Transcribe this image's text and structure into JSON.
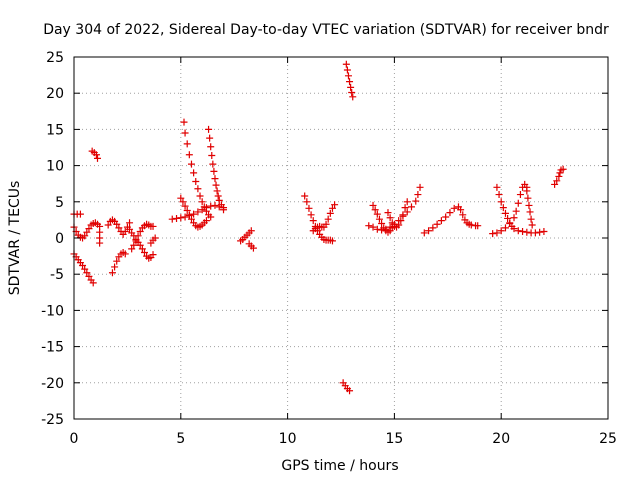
{
  "chart_data": {
    "type": "scatter",
    "title": "Day 304 of 2022, Sidereal Day-to-day VTEC variation (SDTVAR) for receiver bndr",
    "xlabel": "GPS time / hours",
    "ylabel": "SDTVAR / TECUs",
    "xlim": [
      0,
      25
    ],
    "ylim": [
      -25,
      25
    ],
    "xticks": [
      "0",
      "5",
      "10",
      "15",
      "20",
      "25"
    ],
    "yticks": [
      "25",
      "20",
      "15",
      "10",
      "5",
      "0",
      "-5",
      "-10",
      "-15",
      "-20",
      "-25"
    ],
    "grid": true,
    "marker": "plus",
    "color": "#e00000",
    "segments": [
      {
        "points": [
          [
            0.0,
            3.3
          ],
          [
            0.15,
            3.3
          ],
          [
            0.3,
            3.3
          ]
        ]
      },
      {
        "points": [
          [
            0.0,
            -2.2
          ],
          [
            0.1,
            -2.6
          ],
          [
            0.2,
            -3.0
          ],
          [
            0.3,
            -3.4
          ],
          [
            0.4,
            -3.8
          ],
          [
            0.5,
            -4.3
          ],
          [
            0.6,
            -4.8
          ],
          [
            0.7,
            -5.3
          ],
          [
            0.8,
            -5.8
          ],
          [
            0.9,
            -6.2
          ]
        ]
      },
      {
        "points": [
          [
            0.0,
            1.5
          ],
          [
            0.1,
            0.9
          ],
          [
            0.2,
            0.4
          ],
          [
            0.3,
            0.1
          ],
          [
            0.4,
            0.0
          ],
          [
            0.5,
            0.3
          ],
          [
            0.6,
            0.8
          ],
          [
            0.7,
            1.3
          ],
          [
            0.8,
            1.8
          ],
          [
            0.9,
            2.0
          ],
          [
            1.0,
            2.1
          ],
          [
            1.1,
            1.9
          ]
        ]
      },
      {
        "points": [
          [
            0.85,
            12.0
          ],
          [
            0.95,
            11.8
          ],
          [
            1.05,
            11.5
          ],
          [
            1.1,
            11.0
          ]
        ]
      },
      {
        "points": [
          [
            1.2,
            1.6
          ],
          [
            1.2,
            0.8
          ],
          [
            1.2,
            0.0
          ],
          [
            1.2,
            -0.7
          ]
        ]
      },
      {
        "points": [
          [
            1.6,
            1.8
          ],
          [
            1.7,
            2.3
          ],
          [
            1.8,
            2.5
          ],
          [
            1.9,
            2.3
          ],
          [
            2.0,
            1.9
          ],
          [
            2.1,
            1.4
          ],
          [
            2.2,
            0.9
          ],
          [
            2.3,
            0.5
          ],
          [
            2.4,
            0.9
          ],
          [
            2.5,
            1.5
          ],
          [
            2.6,
            2.1
          ]
        ]
      },
      {
        "points": [
          [
            1.8,
            -4.8
          ],
          [
            1.9,
            -4.0
          ],
          [
            2.0,
            -3.2
          ],
          [
            2.1,
            -2.6
          ],
          [
            2.2,
            -2.2
          ],
          [
            2.3,
            -2.0
          ],
          [
            2.4,
            -2.2
          ]
        ]
      },
      {
        "points": [
          [
            2.6,
            1.2
          ],
          [
            2.7,
            0.7
          ],
          [
            2.8,
            0.3
          ],
          [
            2.9,
            -0.2
          ],
          [
            3.0,
            -0.6
          ],
          [
            3.1,
            -1.0
          ],
          [
            3.2,
            -1.5
          ],
          [
            3.3,
            -2.0
          ],
          [
            3.4,
            -2.5
          ],
          [
            3.5,
            -2.8
          ],
          [
            3.6,
            -2.7
          ],
          [
            3.7,
            -2.3
          ]
        ]
      },
      {
        "points": [
          [
            2.7,
            -1.5
          ],
          [
            2.8,
            -1.0
          ],
          [
            2.9,
            -0.4
          ],
          [
            3.0,
            0.3
          ],
          [
            3.1,
            0.9
          ],
          [
            3.2,
            1.4
          ],
          [
            3.3,
            1.7
          ],
          [
            3.4,
            1.9
          ],
          [
            3.5,
            1.8
          ],
          [
            3.6,
            1.6
          ],
          [
            3.7,
            1.6
          ]
        ]
      },
      {
        "points": [
          [
            3.6,
            -0.7
          ],
          [
            3.7,
            -0.3
          ],
          [
            3.8,
            0.0
          ]
        ]
      },
      {
        "points": [
          [
            4.6,
            2.6
          ],
          [
            4.8,
            2.7
          ],
          [
            5.0,
            2.8
          ],
          [
            5.2,
            2.9
          ],
          [
            5.4,
            3.1
          ],
          [
            5.6,
            3.3
          ],
          [
            5.8,
            3.6
          ],
          [
            6.0,
            3.9
          ],
          [
            6.2,
            4.2
          ],
          [
            6.4,
            4.4
          ],
          [
            6.6,
            4.5
          ],
          [
            6.8,
            4.3
          ],
          [
            7.0,
            3.9
          ]
        ]
      },
      {
        "points": [
          [
            5.0,
            5.5
          ],
          [
            5.1,
            5.0
          ],
          [
            5.2,
            4.4
          ],
          [
            5.3,
            3.8
          ],
          [
            5.4,
            3.2
          ],
          [
            5.5,
            2.6
          ],
          [
            5.6,
            2.1
          ],
          [
            5.7,
            1.7
          ],
          [
            5.8,
            1.5
          ],
          [
            5.9,
            1.6
          ],
          [
            6.0,
            1.8
          ],
          [
            6.1,
            2.1
          ],
          [
            6.2,
            2.4
          ]
        ]
      },
      {
        "points": [
          [
            5.15,
            16.0
          ],
          [
            5.2,
            14.5
          ],
          [
            5.3,
            13.0
          ],
          [
            5.4,
            11.5
          ],
          [
            5.5,
            10.2
          ],
          [
            5.6,
            9.0
          ],
          [
            5.7,
            7.8
          ],
          [
            5.8,
            6.8
          ],
          [
            5.9,
            5.8
          ],
          [
            6.0,
            5.0
          ],
          [
            6.1,
            4.3
          ],
          [
            6.2,
            3.7
          ],
          [
            6.3,
            3.2
          ],
          [
            6.4,
            2.9
          ]
        ]
      },
      {
        "points": [
          [
            6.3,
            15.0
          ],
          [
            6.35,
            13.8
          ],
          [
            6.4,
            12.6
          ],
          [
            6.45,
            11.4
          ],
          [
            6.5,
            10.2
          ],
          [
            6.55,
            9.2
          ],
          [
            6.6,
            8.2
          ],
          [
            6.65,
            7.3
          ],
          [
            6.7,
            6.5
          ],
          [
            6.75,
            5.8
          ],
          [
            6.8,
            5.2
          ],
          [
            6.9,
            4.6
          ],
          [
            7.0,
            4.2
          ]
        ]
      },
      {
        "points": [
          [
            7.8,
            -0.4
          ],
          [
            7.9,
            -0.2
          ],
          [
            8.0,
            0.1
          ],
          [
            8.1,
            0.4
          ],
          [
            8.2,
            0.7
          ],
          [
            8.3,
            1.0
          ]
        ]
      },
      {
        "points": [
          [
            8.2,
            -0.8
          ],
          [
            8.3,
            -1.1
          ],
          [
            8.4,
            -1.4
          ]
        ]
      },
      {
        "points": [
          [
            10.8,
            5.8
          ],
          [
            10.9,
            5.0
          ],
          [
            11.0,
            4.1
          ],
          [
            11.1,
            3.2
          ],
          [
            11.2,
            2.4
          ],
          [
            11.3,
            1.6
          ],
          [
            11.4,
            1.0
          ],
          [
            11.5,
            0.5
          ],
          [
            11.6,
            0.1
          ],
          [
            11.7,
            -0.2
          ],
          [
            11.8,
            -0.3
          ],
          [
            11.9,
            -0.3
          ],
          [
            12.0,
            -0.3
          ],
          [
            12.1,
            -0.4
          ]
        ]
      },
      {
        "points": [
          [
            11.2,
            1.0
          ],
          [
            11.3,
            1.3
          ],
          [
            11.4,
            1.5
          ],
          [
            11.5,
            1.6
          ],
          [
            11.6,
            1.5
          ],
          [
            11.7,
            1.5
          ],
          [
            11.8,
            1.9
          ],
          [
            11.9,
            2.6
          ],
          [
            12.0,
            3.4
          ],
          [
            12.1,
            4.1
          ],
          [
            12.2,
            4.6
          ]
        ]
      },
      {
        "points": [
          [
            12.6,
            -20.0
          ],
          [
            12.7,
            -20.4
          ],
          [
            12.8,
            -20.8
          ],
          [
            12.9,
            -21.1
          ]
        ]
      },
      {
        "points": [
          [
            12.75,
            24.0
          ],
          [
            12.8,
            23.2
          ],
          [
            12.85,
            22.4
          ],
          [
            12.9,
            21.6
          ],
          [
            12.95,
            20.8
          ],
          [
            13.0,
            20.1
          ],
          [
            13.05,
            19.5
          ]
        ]
      },
      {
        "points": [
          [
            13.8,
            1.7
          ],
          [
            14.0,
            1.5
          ],
          [
            14.2,
            1.2
          ],
          [
            14.4,
            1.1
          ],
          [
            14.6,
            1.2
          ],
          [
            14.8,
            1.5
          ],
          [
            15.0,
            1.9
          ],
          [
            15.2,
            2.4
          ],
          [
            15.4,
            3.0
          ],
          [
            15.6,
            3.6
          ],
          [
            15.8,
            4.3
          ],
          [
            16.0,
            5.1
          ],
          [
            16.1,
            6.0
          ],
          [
            16.2,
            7.0
          ]
        ]
      },
      {
        "points": [
          [
            14.0,
            4.5
          ],
          [
            14.1,
            3.9
          ],
          [
            14.2,
            3.3
          ],
          [
            14.3,
            2.6
          ],
          [
            14.4,
            2.0
          ],
          [
            14.5,
            1.4
          ],
          [
            14.6,
            1.0
          ],
          [
            14.7,
            0.8
          ],
          [
            14.8,
            1.0
          ],
          [
            14.9,
            1.4
          ]
        ]
      },
      {
        "points": [
          [
            14.7,
            3.5
          ],
          [
            14.8,
            2.8
          ],
          [
            14.9,
            2.1
          ],
          [
            15.0,
            1.6
          ],
          [
            15.1,
            1.5
          ],
          [
            15.2,
            1.8
          ],
          [
            15.3,
            2.4
          ],
          [
            15.4,
            3.2
          ],
          [
            15.5,
            4.2
          ],
          [
            15.6,
            5.0
          ]
        ]
      },
      {
        "points": [
          [
            16.4,
            0.7
          ],
          [
            16.6,
            1.0
          ],
          [
            16.8,
            1.4
          ],
          [
            17.0,
            1.9
          ],
          [
            17.2,
            2.4
          ],
          [
            17.4,
            2.9
          ],
          [
            17.6,
            3.5
          ],
          [
            17.8,
            4.1
          ],
          [
            18.0,
            4.3
          ],
          [
            18.1,
            3.9
          ],
          [
            18.2,
            3.2
          ],
          [
            18.3,
            2.5
          ],
          [
            18.4,
            2.1
          ],
          [
            18.5,
            1.9
          ],
          [
            18.6,
            1.8
          ],
          [
            18.8,
            1.7
          ],
          [
            18.9,
            1.7
          ]
        ]
      },
      {
        "points": [
          [
            19.6,
            0.6
          ],
          [
            19.8,
            0.7
          ],
          [
            20.0,
            1.0
          ],
          [
            20.2,
            1.4
          ],
          [
            20.4,
            2.0
          ],
          [
            20.6,
            2.8
          ],
          [
            20.7,
            3.7
          ],
          [
            20.8,
            4.8
          ],
          [
            20.9,
            6.0
          ],
          [
            21.0,
            7.0
          ],
          [
            21.1,
            7.4
          ],
          [
            21.2,
            7.0
          ]
        ]
      },
      {
        "points": [
          [
            19.8,
            7.0
          ],
          [
            19.9,
            6.0
          ],
          [
            20.0,
            5.0
          ],
          [
            20.1,
            4.2
          ],
          [
            20.2,
            3.4
          ],
          [
            20.3,
            2.7
          ],
          [
            20.4,
            2.1
          ],
          [
            20.5,
            1.6
          ],
          [
            20.6,
            1.3
          ],
          [
            20.8,
            1.0
          ],
          [
            21.0,
            0.9
          ],
          [
            21.2,
            0.8
          ],
          [
            21.4,
            0.7
          ],
          [
            21.6,
            0.7
          ],
          [
            21.8,
            0.8
          ],
          [
            22.0,
            0.9
          ]
        ]
      },
      {
        "points": [
          [
            21.2,
            6.5
          ],
          [
            21.25,
            5.5
          ],
          [
            21.3,
            4.5
          ],
          [
            21.35,
            3.6
          ],
          [
            21.4,
            2.6
          ],
          [
            21.45,
            1.8
          ]
        ]
      },
      {
        "points": [
          [
            22.5,
            7.4
          ],
          [
            22.6,
            7.9
          ],
          [
            22.7,
            8.5
          ],
          [
            22.75,
            9.0
          ],
          [
            22.8,
            9.4
          ],
          [
            22.9,
            9.5
          ]
        ]
      }
    ]
  }
}
